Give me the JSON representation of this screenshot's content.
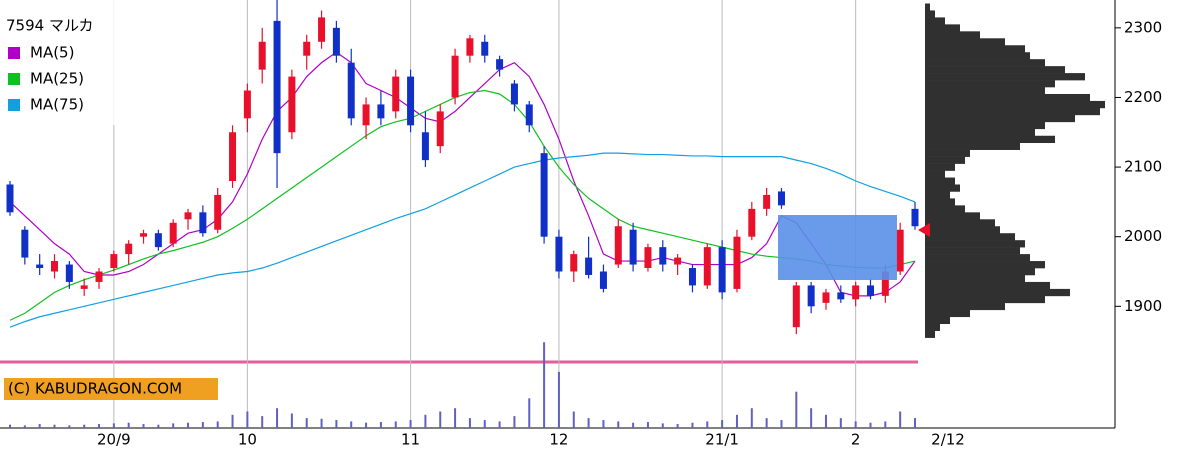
{
  "chart_data": {
    "type": "candlestick",
    "title": "7594 マルカ",
    "categories": [
      null,
      null,
      null,
      null,
      null,
      null,
      null,
      "20/9",
      null,
      null,
      null,
      null,
      null,
      null,
      null,
      null,
      "10",
      null,
      null,
      null,
      null,
      null,
      null,
      null,
      null,
      null,
      null,
      "11",
      null,
      null,
      null,
      null,
      null,
      null,
      null,
      null,
      null,
      "12",
      null,
      null,
      null,
      null,
      null,
      null,
      null,
      null,
      null,
      null,
      "21/1",
      null,
      null,
      null,
      null,
      null,
      null,
      null,
      null,
      "2",
      null,
      null,
      null,
      null
    ],
    "last_date": "2/12",
    "open": [
      2075,
      2010,
      1960,
      1950,
      1960,
      1925,
      1935,
      1955,
      1975,
      2000,
      2005,
      1990,
      2025,
      2035,
      2010,
      2080,
      2170,
      2240,
      2310,
      2150,
      2260,
      2280,
      2300,
      2250,
      2160,
      2190,
      2180,
      2230,
      2150,
      2130,
      2200,
      2260,
      2280,
      2255,
      2220,
      2190,
      2120,
      2000,
      1950,
      1970,
      1950,
      1960,
      2010,
      1955,
      1985,
      1960,
      1955,
      1930,
      1985,
      1925,
      2000,
      2040,
      2065,
      1870,
      1930,
      1905,
      1920,
      1910,
      1930,
      1915,
      1950,
      2040
    ],
    "high": [
      2080,
      2015,
      1975,
      1975,
      1965,
      1940,
      1955,
      1980,
      1995,
      2010,
      2010,
      2025,
      2040,
      2045,
      2070,
      2160,
      2220,
      2300,
      2340,
      2240,
      2290,
      2325,
      2310,
      2270,
      2200,
      2210,
      2240,
      2240,
      2180,
      2190,
      2270,
      2290,
      2290,
      2260,
      2225,
      2195,
      2130,
      2010,
      1980,
      2000,
      1960,
      2025,
      2020,
      1990,
      1995,
      1975,
      1960,
      1990,
      1995,
      2010,
      2050,
      2070,
      2070,
      1935,
      1935,
      1925,
      1930,
      1935,
      1940,
      1960,
      2020,
      2050
    ],
    "low": [
      2030,
      1960,
      1945,
      1940,
      1925,
      1915,
      1925,
      1950,
      1960,
      1990,
      1980,
      1985,
      2010,
      2000,
      2005,
      2070,
      2150,
      2220,
      2070,
      2140,
      2240,
      2270,
      2250,
      2160,
      2140,
      2160,
      2170,
      2150,
      2100,
      2120,
      2190,
      2250,
      2250,
      2230,
      2180,
      2150,
      1990,
      1940,
      1935,
      1940,
      1920,
      1955,
      1950,
      1950,
      1950,
      1945,
      1920,
      1925,
      1910,
      1920,
      1995,
      2030,
      2040,
      1860,
      1890,
      1895,
      1905,
      1900,
      1910,
      1905,
      1945,
      2010
    ],
    "close": [
      2035,
      1970,
      1955,
      1965,
      1935,
      1930,
      1950,
      1975,
      1990,
      2005,
      1985,
      2020,
      2035,
      2005,
      2060,
      2150,
      2210,
      2280,
      2120,
      2230,
      2280,
      2315,
      2260,
      2170,
      2190,
      2170,
      2230,
      2160,
      2110,
      2180,
      2260,
      2285,
      2260,
      2240,
      2190,
      2160,
      2000,
      1950,
      1975,
      1945,
      1925,
      2015,
      1960,
      1985,
      1960,
      1970,
      1930,
      1985,
      1920,
      2000,
      2040,
      2060,
      2045,
      1930,
      1900,
      1920,
      1910,
      1930,
      1915,
      1950,
      2010,
      2015
    ],
    "series": [
      {
        "name": "MA(5)",
        "color": "#b000c8",
        "values": [
          2050,
          2030,
          2010,
          1990,
          1975,
          1950,
          1945,
          1945,
          1950,
          1960,
          1975,
          1990,
          2005,
          2010,
          2025,
          2050,
          2090,
          2140,
          2180,
          2200,
          2230,
          2250,
          2265,
          2250,
          2220,
          2210,
          2200,
          2185,
          2170,
          2165,
          2180,
          2200,
          2220,
          2240,
          2250,
          2230,
          2190,
          2140,
          2080,
          2030,
          1975,
          1965,
          1965,
          1965,
          1970,
          1965,
          1960,
          1960,
          1960,
          1960,
          1970,
          1990,
          2030,
          2020,
          1990,
          1960,
          1920,
          1915,
          1915,
          1920,
          1935,
          1965
        ]
      },
      {
        "name": "MA(25)",
        "color": "#10c020",
        "values": [
          1880,
          1890,
          1905,
          1920,
          1930,
          1938,
          1945,
          1952,
          1960,
          1968,
          1975,
          1980,
          1986,
          1992,
          2000,
          2012,
          2025,
          2040,
          2055,
          2070,
          2085,
          2100,
          2115,
          2130,
          2145,
          2158,
          2165,
          2170,
          2180,
          2190,
          2200,
          2207,
          2210,
          2205,
          2190,
          2165,
          2130,
          2100,
          2075,
          2055,
          2040,
          2025,
          2015,
          2010,
          2005,
          2000,
          1995,
          1990,
          1985,
          1980,
          1975,
          1972,
          1970,
          1968,
          1965,
          1960,
          1958,
          1956,
          1955,
          1955,
          1960,
          1965
        ]
      },
      {
        "name": "MA(75)",
        "color": "#10a0e0",
        "values": [
          1870,
          1878,
          1885,
          1890,
          1895,
          1900,
          1905,
          1910,
          1915,
          1920,
          1925,
          1930,
          1935,
          1940,
          1945,
          1948,
          1950,
          1955,
          1962,
          1970,
          1978,
          1986,
          1994,
          2002,
          2010,
          2018,
          2026,
          2033,
          2040,
          2050,
          2060,
          2070,
          2080,
          2090,
          2100,
          2105,
          2110,
          2113,
          2115,
          2117,
          2120,
          2120,
          2119,
          2118,
          2118,
          2117,
          2116,
          2116,
          2115,
          2115,
          2115,
          2115,
          2115,
          2110,
          2105,
          2098,
          2090,
          2080,
          2072,
          2065,
          2058,
          2050
        ]
      }
    ],
    "up_color": "#e8102a",
    "down_color": "#1030c8",
    "volume": [
      5,
      4,
      6,
      5,
      4,
      5,
      6,
      7,
      8,
      6,
      5,
      7,
      8,
      9,
      10,
      20,
      25,
      18,
      30,
      22,
      15,
      14,
      12,
      10,
      8,
      9,
      10,
      12,
      20,
      25,
      30,
      15,
      12,
      10,
      18,
      45,
      130,
      85,
      25,
      15,
      12,
      10,
      8,
      9,
      7,
      6,
      8,
      10,
      12,
      20,
      30,
      15,
      12,
      55,
      30,
      20,
      15,
      10,
      8,
      10,
      25,
      15
    ],
    "volume_color": "#6060c0",
    "vlim": [
      0,
      100
    ],
    "ylim": [
      1820,
      2340
    ],
    "yticks": [
      1900,
      2000,
      2100,
      2200,
      2300
    ],
    "volume_profile": {
      "prices": [
        1860,
        1870,
        1880,
        1890,
        1900,
        1910,
        1920,
        1930,
        1940,
        1950,
        1960,
        1970,
        1980,
        1990,
        2000,
        2010,
        2020,
        2030,
        2040,
        2050,
        2060,
        2070,
        2080,
        2090,
        2100,
        2110,
        2120,
        2130,
        2140,
        2150,
        2160,
        2170,
        2180,
        2190,
        2200,
        2210,
        2220,
        2230,
        2240,
        2250,
        2260,
        2270,
        2280,
        2290,
        2300,
        2310,
        2320,
        2330
      ],
      "values": [
        10,
        15,
        25,
        45,
        80,
        120,
        145,
        125,
        100,
        110,
        120,
        105,
        95,
        100,
        90,
        75,
        70,
        55,
        40,
        30,
        25,
        35,
        30,
        20,
        30,
        40,
        45,
        95,
        130,
        110,
        120,
        150,
        175,
        180,
        165,
        120,
        130,
        160,
        140,
        120,
        105,
        100,
        80,
        55,
        35,
        20,
        10,
        5
      ],
      "max": 190,
      "color": "#303030"
    },
    "copyright": "(C) KABUDRAGON.COM"
  }
}
